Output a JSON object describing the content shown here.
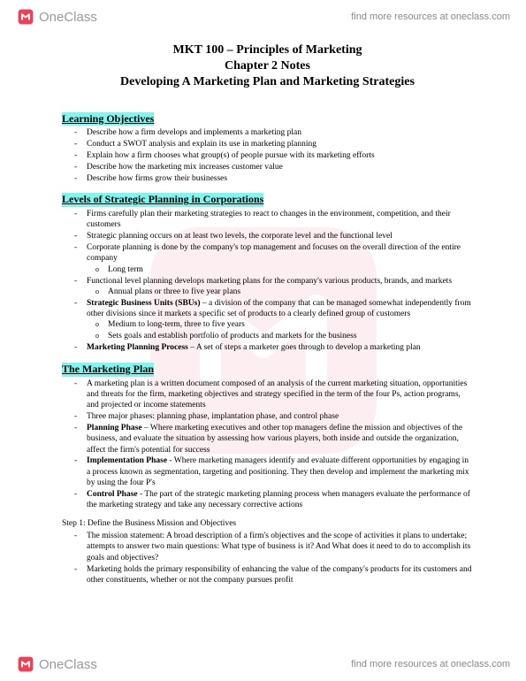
{
  "brand": {
    "name": "OneClass",
    "link_text": "find more resources at oneclass.com",
    "icon_fill": "#ef4056",
    "text_color": "#999999"
  },
  "highlight_color": "#7ff6f0",
  "title": {
    "line1": "MKT 100 – Principles of Marketing",
    "line2": "Chapter 2 Notes",
    "line3": "Developing A Marketing Plan and Marketing Strategies"
  },
  "sections": [
    {
      "heading": "Learning Objectives",
      "bullets": [
        {
          "text": "Describe how a firm develops and implements a marketing plan"
        },
        {
          "text": "Conduct a SWOT analysis and explain its use in marketing planning"
        },
        {
          "text": "Explain how a firm chooses what group(s) of people pursue with its marketing efforts"
        },
        {
          "text": "Describe how the marketing mix increases customer value"
        },
        {
          "text": "Describe how firms grow their businesses"
        }
      ]
    },
    {
      "heading": "Levels of Strategic Planning in Corporations",
      "bullets": [
        {
          "text": "Firms carefully plan their marketing strategies to react to changes in the environment, competition, and their customers"
        },
        {
          "text": "Strategic planning occurs on at least two levels, the corporate level and the functional level"
        },
        {
          "text": "Corporate planning is done by the company's top management and focuses on the overall direction of the entire company",
          "sub": [
            "Long term"
          ]
        },
        {
          "text": "Functional level planning develops marketing plans for the company's various products, brands, and markets",
          "sub": [
            "Annual plans or three to five year plans"
          ]
        },
        {
          "bold": "Strategic Business Units (SBUs)",
          "text": " – a division of the company that can be managed somewhat independently from other divisions since it markets a specific set of products to a clearly defined group of customers",
          "sub": [
            "Medium to long-term, three to five years",
            "Sets goals and establish portfolio of products and markets for the business"
          ]
        },
        {
          "bold": "Marketing Planning Process",
          "text": " – A set of steps a marketer goes through to develop a marketing plan"
        }
      ]
    },
    {
      "heading": "The Marketing Plan",
      "bullets": [
        {
          "text": "A marketing plan is a written document composed of an analysis of the current marketing situation, opportunities and threats for the firm, marketing objectives and strategy specified in the term of the four Ps, action programs, and projected or income statements"
        },
        {
          "text": "Three major phases: planning phase, implantation phase, and control phase"
        },
        {
          "bold": "Planning Phase",
          "text": " – Where marketing executives and other top managers define the mission and objectives of the business, and evaluate the situation by assessing how various players, both inside and outside the organization, affect the firm's potential for success"
        },
        {
          "bold": "Implementation Phase",
          "text": " - Where marketing managers identify and evaluate different opportunities by engaging in a process known as segmentation, targeting and positioning. They then develop and implement the marketing mix by using the four P's"
        },
        {
          "bold": "Control Phase",
          "text": " - The part of the strategic marketing planning process when managers evaluate the performance of the marketing strategy and take any necessary corrective actions"
        }
      ]
    }
  ],
  "step": {
    "label": "Step 1: Define the Business Mission and Objectives",
    "bullets": [
      {
        "text": "The mission statement: A broad description of a firm's objectives and the scope of activities it plans to undertake; attempts to answer two main questions: What type of business is it? And What does it need to do to accomplish its goals and objectives?"
      },
      {
        "text": "Marketing holds the primary responsibility of enhancing the value of the company's products for its customers and other constituents, whether or not the company pursues profit"
      }
    ]
  }
}
